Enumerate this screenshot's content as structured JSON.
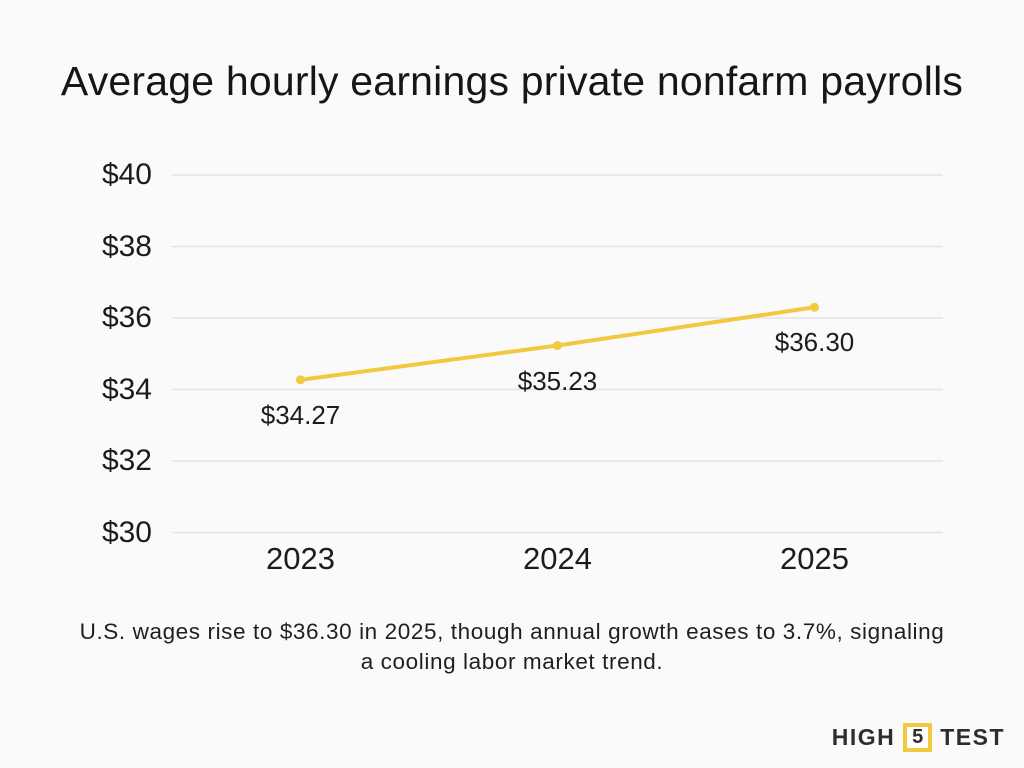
{
  "title": "Average hourly earnings private nonfarm payrolls",
  "subtitle": "U.S. wages rise to $36.30 in 2025, though annual growth eases to 3.7%, signaling a cooling labor market trend.",
  "logo": {
    "left": "HIGH",
    "number": "5",
    "right": "TEST"
  },
  "colors": {
    "background": "#FAFAFA",
    "accent_yellow": "#F0C941",
    "gridline": "#E3E3E3",
    "text": "#1C1C1C"
  },
  "chart_data": {
    "type": "line",
    "title": "Average hourly earnings private nonfarm payrolls",
    "categories": [
      "2023",
      "2024",
      "2025"
    ],
    "series": [
      {
        "name": "Average hourly earnings",
        "values": [
          34.27,
          35.23,
          36.3
        ]
      }
    ],
    "point_labels": [
      "$34.27",
      "$35.23",
      "$36.30"
    ],
    "y_tick_values": [
      40,
      38,
      36,
      34,
      32,
      30
    ],
    "y_tick_labels": [
      "$40",
      "$38",
      "$36",
      "$34",
      "$32",
      "$30"
    ],
    "ylim": [
      30,
      40
    ],
    "xlabel": "",
    "ylabel": "",
    "grid": "horizontal",
    "legend": "none",
    "line_color": "#F0C941"
  }
}
